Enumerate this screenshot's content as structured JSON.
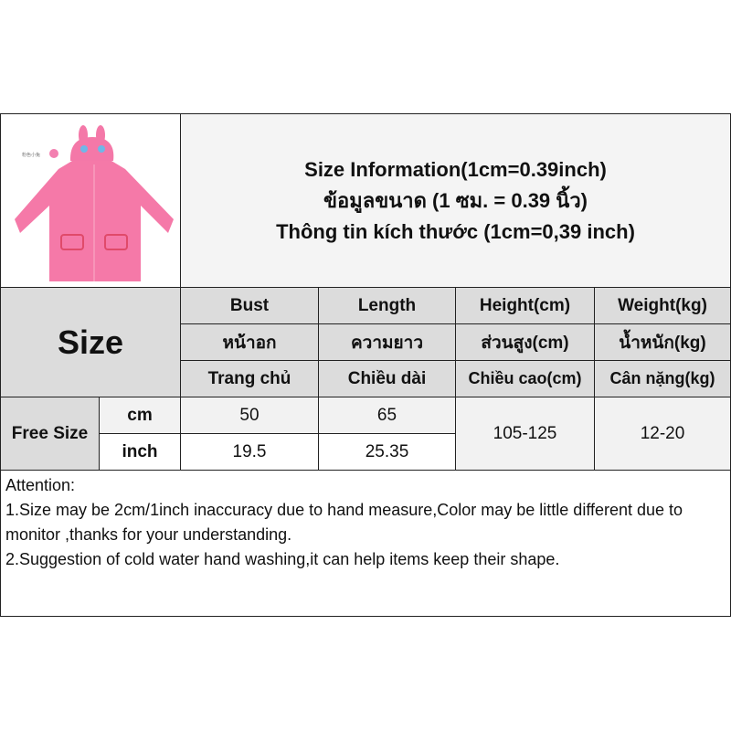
{
  "header": {
    "lines": [
      "Size Information(1cm=0.39inch)",
      "ข้อมูลขนาด (1 ซม. = 0.39 นิ้ว)",
      "Thông tin kích thước (1cm=0,39 inch)"
    ],
    "product_color_label": "粉色小兔"
  },
  "table": {
    "size_label": "Size",
    "columns": [
      {
        "en": "Bust",
        "th": "หน้าอก",
        "vi": "Trang chủ"
      },
      {
        "en": "Length",
        "th": "ความยาว",
        "vi": "Chiều dài"
      },
      {
        "en": "Height(cm)",
        "th": "ส่วนสูง(cm)",
        "vi": "Chiều cao(cm)"
      },
      {
        "en": "Weight(kg)",
        "th": "น้ำหนัก(kg)",
        "vi": "Cân nặng(kg)"
      }
    ],
    "row_label": "Free Size",
    "units": [
      "cm",
      "inch"
    ],
    "cm": {
      "bust": "50",
      "length": "65"
    },
    "inch": {
      "bust": "19.5",
      "length": "25.35"
    },
    "height": "105-125",
    "weight": "12-20"
  },
  "attention": {
    "title": "Attention:",
    "lines": [
      "1.Size may be 2cm/1inch inaccuracy due to hand measure,Color may be little different due to monitor ,thanks for your understanding.",
      "2.Suggestion of cold water hand washing,it can help items keep their shape."
    ]
  },
  "colors": {
    "raincoat": "#f06a9a",
    "header_bg": "#dcdcdc"
  }
}
